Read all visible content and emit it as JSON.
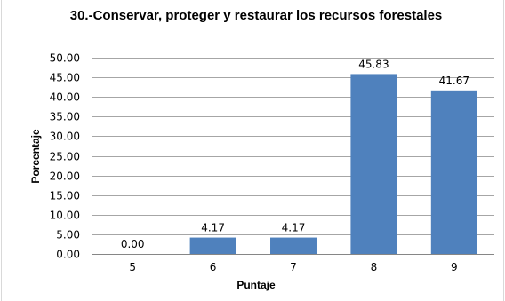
{
  "chart_data": {
    "type": "bar",
    "title": "30.-Conservar, proteger y restaurar los recursos forestales",
    "xlabel": "Puntaje",
    "ylabel": "Porcentaje",
    "categories": [
      "5",
      "6",
      "7",
      "8",
      "9"
    ],
    "values": [
      0.0,
      4.17,
      4.17,
      45.83,
      41.67
    ],
    "data_labels": [
      "0.00",
      "4.17",
      "4.17",
      "45.83",
      "41.67"
    ],
    "ylim": [
      0,
      50
    ],
    "ytick_labels": [
      "0.00",
      "5.00",
      "10.00",
      "15.00",
      "20.00",
      "25.00",
      "30.00",
      "35.00",
      "40.00",
      "45.00",
      "50.00"
    ],
    "grid": true,
    "legend": "none",
    "bar_color": "#4f81bd",
    "gridline_color": "#a6a6a6"
  }
}
